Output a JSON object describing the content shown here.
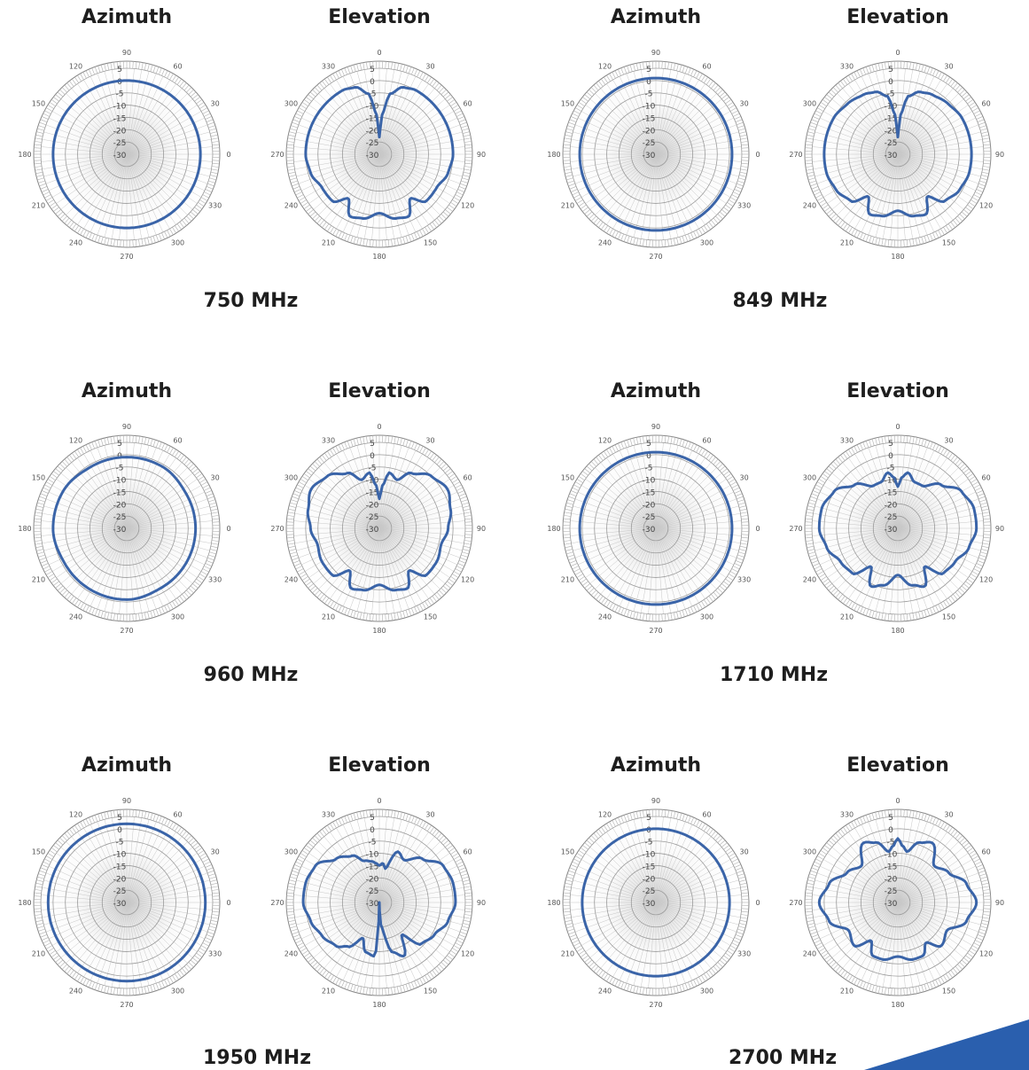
{
  "page": {
    "accent_color": "#3a64a8",
    "corner_color": "#2a5fae"
  },
  "polar": {
    "radial_labels": [
      "5",
      "0",
      "-5",
      "-10",
      "-15",
      "-20",
      "-25",
      "-30"
    ],
    "azimuth_angle_labels": [
      "90",
      "60",
      "30",
      "0",
      "330",
      "300",
      "270",
      "240",
      "210",
      "180",
      "150",
      "120"
    ],
    "elevation_angle_labels": [
      "0",
      "330",
      "300",
      "270",
      "240",
      "210",
      "180",
      "150",
      "120",
      "90",
      "60",
      "30"
    ],
    "rlim": [
      -30,
      5
    ],
    "grid": true
  },
  "chart_data": [
    {
      "type": "polar",
      "title": "Azimuth",
      "group_label": "750 MHz",
      "angles_deg": [
        0,
        30,
        60,
        90,
        120,
        150,
        180,
        210,
        240,
        270,
        300,
        330
      ],
      "values_db": [
        0,
        0,
        0,
        0,
        0,
        0,
        0,
        0,
        0,
        0,
        0,
        0
      ],
      "rlim": [
        -30,
        5
      ]
    },
    {
      "type": "polar",
      "title": "Elevation",
      "group_label": "750 MHz",
      "angles_deg": [
        0,
        5,
        10,
        20,
        30,
        45,
        60,
        75,
        90,
        105,
        120,
        135,
        145,
        155,
        165,
        180,
        195,
        205,
        215,
        225,
        240,
        255,
        270,
        285,
        300,
        315,
        330,
        340,
        350,
        355
      ],
      "values_db": [
        -23,
        -13,
        -5,
        -1,
        0,
        0,
        0,
        0,
        0,
        -1,
        -3,
        -3,
        -8,
        -2,
        -3,
        -6,
        -3,
        -2,
        -8,
        -3,
        -3,
        -1,
        0,
        0,
        0,
        0,
        0,
        -1,
        -5,
        -13
      ],
      "rlim": [
        -30,
        5
      ]
    },
    {
      "type": "polar",
      "title": "Azimuth",
      "group_label": "849 MHz",
      "angles_deg": [
        0,
        30,
        60,
        90,
        120,
        150,
        180,
        210,
        240,
        270,
        300,
        330
      ],
      "values_db": [
        1,
        1,
        1,
        1,
        1,
        1,
        1,
        1,
        1,
        1,
        1,
        1
      ],
      "rlim": [
        -30,
        5
      ]
    },
    {
      "type": "polar",
      "title": "Elevation",
      "group_label": "849 MHz",
      "angles_deg": [
        0,
        5,
        10,
        20,
        30,
        45,
        60,
        75,
        90,
        105,
        120,
        135,
        145,
        155,
        165,
        180,
        195,
        205,
        215,
        225,
        240,
        255,
        270,
        285,
        300,
        315,
        330,
        340,
        350,
        355
      ],
      "values_db": [
        -23,
        -13,
        -6,
        -3,
        -2,
        -1,
        0,
        0,
        0,
        0,
        -1,
        -3,
        -9,
        -3,
        -4,
        -7,
        -4,
        -3,
        -9,
        -3,
        -1,
        0,
        0,
        0,
        0,
        -1,
        -2,
        -3,
        -6,
        -13
      ],
      "rlim": [
        -30,
        5
      ]
    },
    {
      "type": "polar",
      "title": "Azimuth",
      "group_label": "960 MHz",
      "angles_deg": [
        0,
        30,
        60,
        90,
        120,
        150,
        180,
        210,
        240,
        270,
        300,
        330
      ],
      "values_db": [
        -2,
        -2,
        -1,
        -1,
        -1,
        0,
        0,
        -1,
        -1,
        -1,
        -2,
        -2
      ],
      "rlim": [
        -30,
        5
      ]
    },
    {
      "type": "polar",
      "title": "Elevation",
      "group_label": "960 MHz",
      "angles_deg": [
        0,
        5,
        10,
        20,
        30,
        45,
        60,
        75,
        90,
        105,
        120,
        135,
        145,
        155,
        165,
        180,
        195,
        205,
        215,
        225,
        240,
        255,
        270,
        285,
        300,
        315,
        330,
        340,
        350,
        355
      ],
      "values_db": [
        -18,
        -12,
        -7,
        -9,
        -4,
        0,
        2,
        0,
        -2,
        -4,
        -3,
        -3,
        -9,
        -3,
        -4,
        -7,
        -4,
        -3,
        -9,
        -3,
        -3,
        -4,
        -2,
        0,
        2,
        0,
        -4,
        -9,
        -7,
        -12
      ],
      "rlim": [
        -30,
        5
      ]
    },
    {
      "type": "polar",
      "title": "Azimuth",
      "group_label": "1710 MHz",
      "angles_deg": [
        0,
        30,
        60,
        90,
        120,
        150,
        180,
        210,
        240,
        270,
        300,
        330
      ],
      "values_db": [
        1,
        1,
        1,
        1,
        1,
        1,
        1,
        1,
        1,
        1,
        1,
        1
      ],
      "rlim": [
        -30,
        5
      ]
    },
    {
      "type": "polar",
      "title": "Elevation",
      "group_label": "1710 MHz",
      "angles_deg": [
        0,
        5,
        10,
        20,
        30,
        45,
        60,
        75,
        90,
        105,
        120,
        135,
        145,
        155,
        165,
        180,
        195,
        205,
        215,
        225,
        240,
        255,
        270,
        285,
        300,
        315,
        330,
        340,
        350,
        355
      ],
      "values_db": [
        -13,
        -9,
        -7,
        -10,
        -10,
        -5,
        0,
        2,
        2,
        0,
        -3,
        -4,
        -11,
        -4,
        -6,
        -11,
        -6,
        -4,
        -11,
        -4,
        -3,
        0,
        2,
        2,
        0,
        -5,
        -10,
        -10,
        -7,
        -9
      ],
      "rlim": [
        -30,
        5
      ]
    },
    {
      "type": "polar",
      "title": "Azimuth",
      "group_label": "1950 MHz",
      "angles_deg": [
        0,
        30,
        60,
        90,
        120,
        150,
        180,
        210,
        240,
        270,
        300,
        330
      ],
      "values_db": [
        2,
        2,
        2,
        2,
        2,
        2,
        2,
        2,
        2,
        2,
        2,
        2
      ],
      "rlim": [
        -30,
        5
      ]
    },
    {
      "type": "polar",
      "title": "Elevation",
      "group_label": "1950 MHz",
      "angles_deg": [
        0,
        5,
        10,
        20,
        30,
        45,
        60,
        75,
        90,
        105,
        120,
        135,
        145,
        155,
        165,
        175,
        180,
        185,
        195,
        205,
        215,
        225,
        240,
        255,
        270,
        285,
        300,
        315,
        330,
        340,
        350,
        355
      ],
      "values_db": [
        -15,
        -14,
        -16,
        -8,
        -10,
        -5,
        0,
        1,
        1,
        -1,
        -4,
        -6,
        -14,
        -6,
        -9,
        -20,
        -30,
        -8,
        -9,
        -14,
        -8,
        -5,
        -3,
        -1,
        1,
        1,
        0,
        -5,
        -8,
        -12,
        -13,
        -14
      ],
      "rlim": [
        -30,
        5
      ]
    },
    {
      "type": "polar",
      "title": "Azimuth",
      "group_label": "2700 MHz",
      "angles_deg": [
        0,
        30,
        60,
        90,
        120,
        150,
        180,
        210,
        240,
        270,
        300,
        330
      ],
      "values_db": [
        0,
        0,
        0,
        0,
        0,
        0,
        0,
        0,
        0,
        0,
        0,
        0
      ],
      "rlim": [
        -30,
        5
      ]
    },
    {
      "type": "polar",
      "title": "Elevation",
      "group_label": "2700 MHz",
      "angles_deg": [
        0,
        5,
        10,
        20,
        30,
        45,
        60,
        75,
        90,
        105,
        120,
        135,
        145,
        155,
        165,
        180,
        195,
        205,
        215,
        225,
        240,
        255,
        270,
        285,
        300,
        315,
        330,
        340,
        350,
        355
      ],
      "values_db": [
        -4,
        -7,
        -9,
        -4,
        -2,
        -9,
        -6,
        -1,
        2,
        -1,
        -7,
        -5,
        -10,
        -6,
        -6,
        -8,
        -6,
        -6,
        -11,
        -5,
        -7,
        -1,
        2,
        -1,
        -6,
        -9,
        -2,
        -4,
        -9,
        -7
      ],
      "rlim": [
        -30,
        5
      ]
    }
  ]
}
